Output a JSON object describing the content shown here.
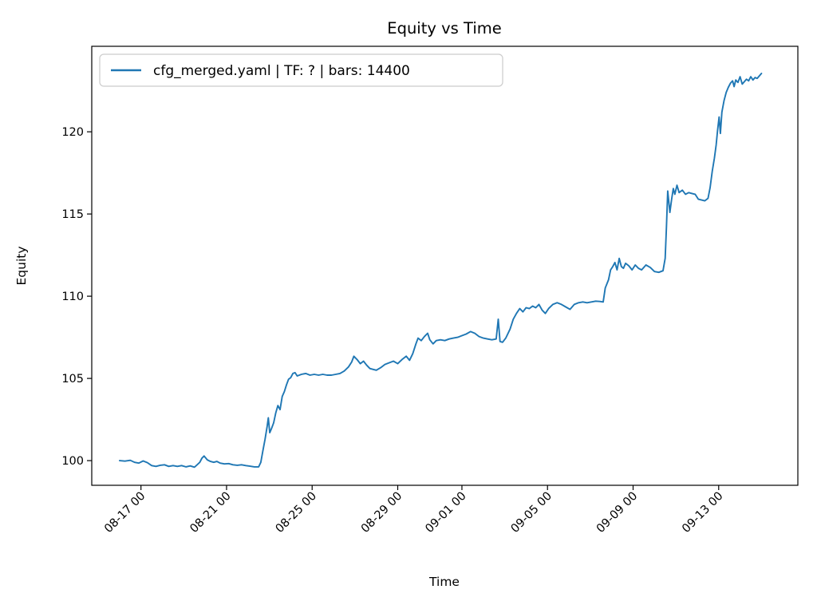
{
  "figure": {
    "background": "#ffffff"
  },
  "chart_data": {
    "type": "line",
    "title": "Equity vs Time",
    "xlabel": "Time",
    "ylabel": "Equity",
    "legend_label": "cfg_merged.yaml | TF: ? | bars: 14400",
    "legend_position": "upper left",
    "line_color": "#1f77b4",
    "grid": false,
    "x_axis_unit": "days since 08-16 00:00 (tick labels are MM-DD HH)",
    "xlim": [
      -1.3,
      31.7
    ],
    "ylim": [
      98.5,
      125.2
    ],
    "x_ticks": [
      {
        "pos": 1,
        "label": "08-17 00"
      },
      {
        "pos": 5,
        "label": "08-21 00"
      },
      {
        "pos": 9,
        "label": "08-25 00"
      },
      {
        "pos": 13,
        "label": "08-29 00"
      },
      {
        "pos": 16,
        "label": "09-01 00"
      },
      {
        "pos": 20,
        "label": "09-05 00"
      },
      {
        "pos": 24,
        "label": "09-09 00"
      },
      {
        "pos": 28,
        "label": "09-13 00"
      }
    ],
    "y_ticks": [
      100,
      105,
      110,
      115,
      120
    ],
    "series": [
      {
        "name": "cfg_merged.yaml | TF: ? | bars: 14400",
        "points": [
          [
            0,
            100.0
          ],
          [
            0.25,
            99.97
          ],
          [
            0.5,
            100.02
          ],
          [
            0.7,
            99.9
          ],
          [
            0.9,
            99.85
          ],
          [
            1.1,
            99.98
          ],
          [
            1.3,
            99.88
          ],
          [
            1.5,
            99.7
          ],
          [
            1.7,
            99.65
          ],
          [
            1.9,
            99.72
          ],
          [
            2.1,
            99.75
          ],
          [
            2.3,
            99.65
          ],
          [
            2.5,
            99.7
          ],
          [
            2.7,
            99.65
          ],
          [
            2.9,
            99.7
          ],
          [
            3.1,
            99.62
          ],
          [
            3.3,
            99.68
          ],
          [
            3.5,
            99.6
          ],
          [
            3.6,
            99.72
          ],
          [
            3.75,
            99.9
          ],
          [
            3.85,
            100.15
          ],
          [
            3.95,
            100.28
          ],
          [
            4.1,
            100.05
          ],
          [
            4.25,
            99.95
          ],
          [
            4.4,
            99.9
          ],
          [
            4.55,
            99.95
          ],
          [
            4.7,
            99.85
          ],
          [
            4.9,
            99.8
          ],
          [
            5.1,
            99.82
          ],
          [
            5.3,
            99.75
          ],
          [
            5.5,
            99.72
          ],
          [
            5.7,
            99.75
          ],
          [
            5.9,
            99.7
          ],
          [
            6.1,
            99.66
          ],
          [
            6.3,
            99.62
          ],
          [
            6.5,
            99.62
          ],
          [
            6.6,
            99.9
          ],
          [
            6.7,
            100.6
          ],
          [
            6.8,
            101.3
          ],
          [
            6.9,
            102.1
          ],
          [
            6.95,
            102.6
          ],
          [
            7.02,
            101.7
          ],
          [
            7.1,
            101.95
          ],
          [
            7.2,
            102.3
          ],
          [
            7.3,
            102.9
          ],
          [
            7.4,
            103.35
          ],
          [
            7.5,
            103.1
          ],
          [
            7.6,
            103.9
          ],
          [
            7.7,
            104.2
          ],
          [
            7.8,
            104.6
          ],
          [
            7.9,
            104.95
          ],
          [
            8.0,
            105.05
          ],
          [
            8.1,
            105.3
          ],
          [
            8.2,
            105.35
          ],
          [
            8.3,
            105.15
          ],
          [
            8.5,
            105.25
          ],
          [
            8.7,
            105.3
          ],
          [
            8.9,
            105.2
          ],
          [
            9.1,
            105.25
          ],
          [
            9.3,
            105.2
          ],
          [
            9.5,
            105.25
          ],
          [
            9.7,
            105.2
          ],
          [
            9.9,
            105.2
          ],
          [
            10.1,
            105.25
          ],
          [
            10.3,
            105.3
          ],
          [
            10.5,
            105.45
          ],
          [
            10.7,
            105.7
          ],
          [
            10.85,
            106.0
          ],
          [
            10.95,
            106.35
          ],
          [
            11.1,
            106.15
          ],
          [
            11.25,
            105.9
          ],
          [
            11.4,
            106.05
          ],
          [
            11.55,
            105.8
          ],
          [
            11.7,
            105.6
          ],
          [
            11.85,
            105.55
          ],
          [
            12.0,
            105.5
          ],
          [
            12.2,
            105.65
          ],
          [
            12.4,
            105.85
          ],
          [
            12.6,
            105.95
          ],
          [
            12.8,
            106.05
          ],
          [
            13.0,
            105.9
          ],
          [
            13.2,
            106.15
          ],
          [
            13.4,
            106.35
          ],
          [
            13.55,
            106.1
          ],
          [
            13.7,
            106.5
          ],
          [
            13.85,
            107.1
          ],
          [
            13.95,
            107.45
          ],
          [
            14.1,
            107.3
          ],
          [
            14.25,
            107.55
          ],
          [
            14.4,
            107.75
          ],
          [
            14.5,
            107.35
          ],
          [
            14.65,
            107.1
          ],
          [
            14.8,
            107.3
          ],
          [
            15.0,
            107.35
          ],
          [
            15.2,
            107.3
          ],
          [
            15.4,
            107.4
          ],
          [
            15.6,
            107.45
          ],
          [
            15.8,
            107.5
          ],
          [
            16.0,
            107.6
          ],
          [
            16.2,
            107.7
          ],
          [
            16.4,
            107.85
          ],
          [
            16.6,
            107.75
          ],
          [
            16.8,
            107.55
          ],
          [
            17.0,
            107.45
          ],
          [
            17.2,
            107.4
          ],
          [
            17.4,
            107.35
          ],
          [
            17.6,
            107.4
          ],
          [
            17.7,
            108.6
          ],
          [
            17.78,
            107.25
          ],
          [
            17.9,
            107.2
          ],
          [
            18.05,
            107.45
          ],
          [
            18.25,
            108.0
          ],
          [
            18.4,
            108.6
          ],
          [
            18.55,
            108.95
          ],
          [
            18.7,
            109.25
          ],
          [
            18.85,
            109.05
          ],
          [
            19.0,
            109.3
          ],
          [
            19.15,
            109.25
          ],
          [
            19.3,
            109.4
          ],
          [
            19.45,
            109.3
          ],
          [
            19.6,
            109.5
          ],
          [
            19.75,
            109.15
          ],
          [
            19.9,
            108.95
          ],
          [
            20.05,
            109.25
          ],
          [
            20.25,
            109.5
          ],
          [
            20.45,
            109.6
          ],
          [
            20.65,
            109.5
          ],
          [
            20.85,
            109.35
          ],
          [
            21.05,
            109.2
          ],
          [
            21.25,
            109.5
          ],
          [
            21.45,
            109.6
          ],
          [
            21.65,
            109.65
          ],
          [
            21.85,
            109.6
          ],
          [
            22.05,
            109.65
          ],
          [
            22.25,
            109.7
          ],
          [
            22.45,
            109.68
          ],
          [
            22.6,
            109.65
          ],
          [
            22.7,
            110.5
          ],
          [
            22.85,
            111.0
          ],
          [
            22.95,
            111.6
          ],
          [
            23.05,
            111.8
          ],
          [
            23.15,
            112.05
          ],
          [
            23.25,
            111.6
          ],
          [
            23.35,
            112.3
          ],
          [
            23.45,
            111.8
          ],
          [
            23.55,
            111.7
          ],
          [
            23.65,
            112.0
          ],
          [
            23.8,
            111.85
          ],
          [
            23.95,
            111.6
          ],
          [
            24.1,
            111.9
          ],
          [
            24.25,
            111.7
          ],
          [
            24.4,
            111.6
          ],
          [
            24.6,
            111.9
          ],
          [
            24.8,
            111.75
          ],
          [
            25.0,
            111.5
          ],
          [
            25.2,
            111.45
          ],
          [
            25.4,
            111.55
          ],
          [
            25.5,
            112.3
          ],
          [
            25.56,
            114.2
          ],
          [
            25.62,
            116.4
          ],
          [
            25.72,
            115.1
          ],
          [
            25.8,
            115.9
          ],
          [
            25.88,
            116.55
          ],
          [
            25.95,
            116.2
          ],
          [
            26.05,
            116.75
          ],
          [
            26.15,
            116.3
          ],
          [
            26.3,
            116.45
          ],
          [
            26.45,
            116.2
          ],
          [
            26.6,
            116.3
          ],
          [
            26.75,
            116.25
          ],
          [
            26.9,
            116.2
          ],
          [
            27.05,
            115.9
          ],
          [
            27.2,
            115.85
          ],
          [
            27.35,
            115.8
          ],
          [
            27.5,
            115.95
          ],
          [
            27.6,
            116.6
          ],
          [
            27.7,
            117.6
          ],
          [
            27.8,
            118.4
          ],
          [
            27.88,
            119.2
          ],
          [
            27.95,
            120.1
          ],
          [
            28.02,
            120.9
          ],
          [
            28.08,
            119.9
          ],
          [
            28.15,
            121.2
          ],
          [
            28.25,
            121.9
          ],
          [
            28.35,
            122.4
          ],
          [
            28.45,
            122.7
          ],
          [
            28.55,
            122.95
          ],
          [
            28.65,
            123.1
          ],
          [
            28.72,
            122.75
          ],
          [
            28.8,
            123.15
          ],
          [
            28.9,
            123.0
          ],
          [
            29.0,
            123.35
          ],
          [
            29.1,
            122.9
          ],
          [
            29.2,
            123.05
          ],
          [
            29.3,
            123.2
          ],
          [
            29.4,
            123.1
          ],
          [
            29.5,
            123.35
          ],
          [
            29.6,
            123.15
          ],
          [
            29.7,
            123.3
          ],
          [
            29.8,
            123.25
          ],
          [
            30.0,
            123.55
          ]
        ]
      }
    ]
  }
}
